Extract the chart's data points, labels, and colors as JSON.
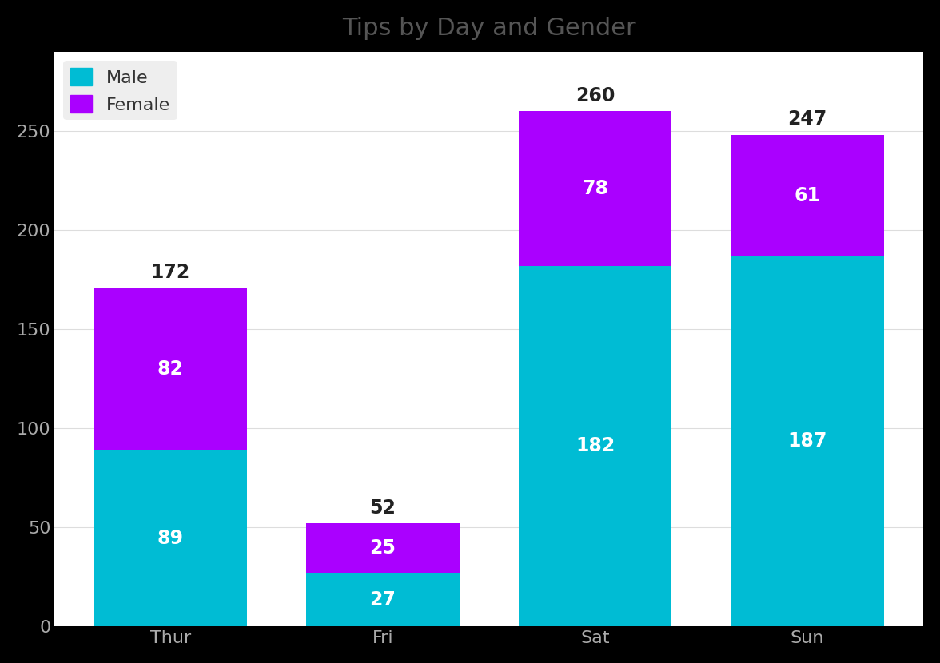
{
  "title": "Tips by Day and Gender",
  "categories": [
    "Thur",
    "Fri",
    "Sat",
    "Sun"
  ],
  "male_values": [
    89,
    27,
    182,
    187
  ],
  "female_values": [
    82,
    25,
    78,
    61
  ],
  "totals": [
    172,
    52,
    260,
    247
  ],
  "male_color": "#00bcd4",
  "female_color": "#aa00ff",
  "outer_bg_color": "#000000",
  "plot_bg_color": "#ffffff",
  "title_color": "#555555",
  "tick_color": "#aaaaaa",
  "xtick_color": "#aaaaaa",
  "label_color_inside": "#ffffff",
  "label_color_outside": "#222222",
  "title_fontsize": 22,
  "tick_fontsize": 16,
  "label_fontsize": 17,
  "total_fontsize": 17,
  "legend_fontsize": 16,
  "ylim": [
    0,
    290
  ],
  "bar_width": 0.72,
  "grid_color": "#dddddd"
}
